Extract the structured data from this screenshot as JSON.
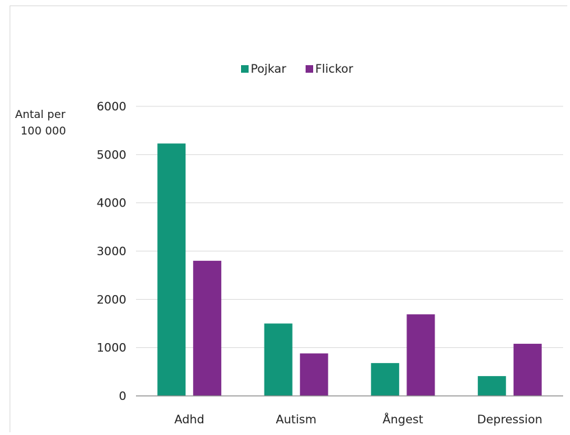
{
  "chart_data": {
    "type": "bar",
    "title": "",
    "ylabel_lines": [
      "Antal per",
      "100 000"
    ],
    "xlabel": "",
    "categories": [
      "Adhd",
      "Autism",
      "Ångest",
      "Depression"
    ],
    "series": [
      {
        "name": "Pojkar",
        "color": "#12967a",
        "values": [
          5230,
          1500,
          680,
          410
        ]
      },
      {
        "name": "Flickor",
        "color": "#7e2b8c",
        "values": [
          2800,
          880,
          1690,
          1080
        ]
      }
    ],
    "ylim": [
      0,
      6000
    ],
    "yticks": [
      0,
      1000,
      2000,
      3000,
      4000,
      5000,
      6000
    ],
    "grid": true,
    "legend_position": "top-center"
  }
}
